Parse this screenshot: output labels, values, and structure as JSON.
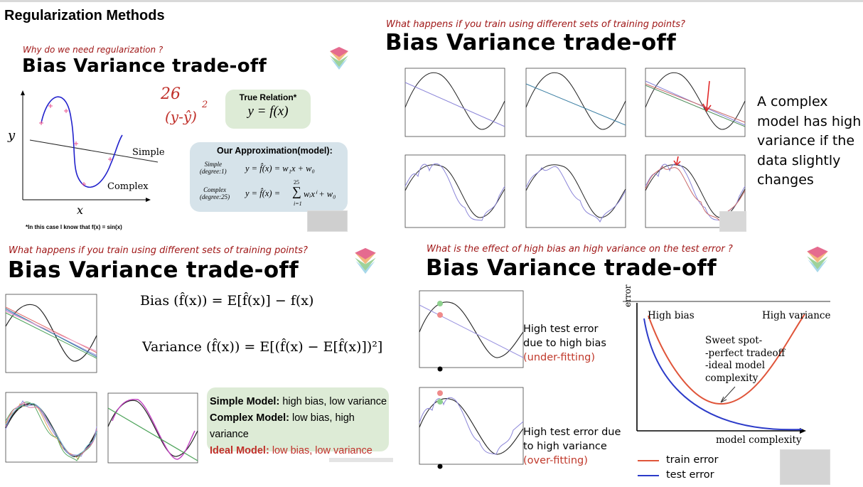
{
  "page_title": "Regularization Methods",
  "q1": {
    "subtitle": "Why do we need regularization ?",
    "title": "Bias Variance trade-off",
    "axis_y": "y",
    "axis_x": "x",
    "label_simple": "Simple",
    "label_complex": "Complex",
    "handwriting_1": "26",
    "handwriting_2": "(y-ŷ)",
    "handwriting_exp": "2",
    "true_relation_title": "True Relation*",
    "true_relation_eq": "y = f(x)",
    "approx_title": "Our Approximation(model):",
    "simple_label": "Simple",
    "simple_degree": "(degree:1)",
    "simple_eq": "y = f̂(x) = w₁x + w₀",
    "complex_label": "Complex",
    "complex_degree": "(degree:25)",
    "complex_eq_left": "y = f̂(x) =",
    "complex_sum_top": "25",
    "complex_sum_bottom": "i=1",
    "complex_eq_right": "wᵢxⁱ + w₀",
    "footnote": "*In this case I know that f(x) = sin(x)"
  },
  "q2": {
    "subtitle": "What happens if you train using different sets of training points?",
    "title": "Bias Variance trade-off",
    "side_note": "A complex model has high variance if the data slightly changes"
  },
  "q3": {
    "subtitle": "What happens if you train using different sets of training points?",
    "title": "Bias Variance trade-off",
    "bias_eq": "Bias (f̂(x)) = E[f̂(x)] − f(x)",
    "variance_eq": "Variance (f̂(x)) = E[(f̂(x) − E[f̂(x)])²]",
    "simple_bold": "Simple Model:",
    "simple_text": " high bias, low variance",
    "complex_bold": "Complex Model:",
    "complex_text": " low bias, high variance",
    "ideal_bold": "Ideal Model:",
    "ideal_text": " low bias, low variance"
  },
  "q4": {
    "subtitle": "What is the effect of high bias an high variance on the test error ?",
    "title": "Bias Variance trade-off",
    "bias_text_1": "High test error",
    "bias_text_2": "due to high bias",
    "bias_text_3": "(under-fitting)",
    "var_text_1": "High test error due",
    "var_text_2": "to high variance",
    "var_text_3": "(over-fitting)",
    "chart_error_label": "error",
    "chart_high_bias": "High bias",
    "chart_high_variance": "High variance",
    "sweet_1": "Sweet spot-",
    "sweet_2": "-perfect tradeoff",
    "sweet_3": "-ideal model",
    "sweet_4": "complexity",
    "chart_x_label": "model complexity",
    "legend_train": "train error",
    "legend_test": "test error"
  },
  "colors": {
    "accent_red": "#a01818",
    "train_error": "#e0553a",
    "test_error": "#2c3bc9",
    "green_box": "#ddebd6",
    "blue_box": "#d6e3ea"
  }
}
